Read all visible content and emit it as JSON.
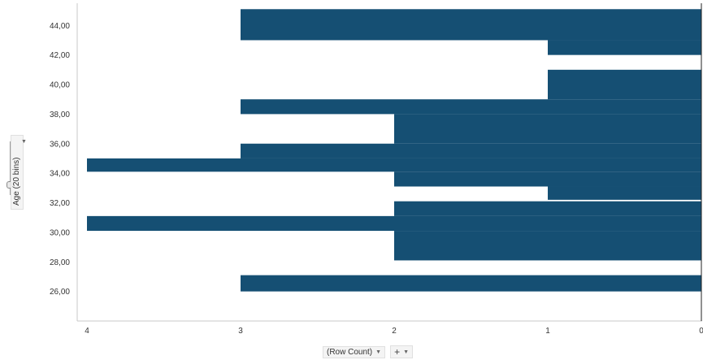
{
  "chart_data": {
    "type": "bar",
    "orientation": "horizontal",
    "x_reversed": true,
    "xlabel": "(Row Count)",
    "ylabel": "Age (20 bins)",
    "xlim": [
      0,
      4
    ],
    "ylim": [
      24,
      45.5
    ],
    "x_ticks": [
      "4",
      "3",
      "2",
      "1",
      "0"
    ],
    "y_ticks": [
      "26,00",
      "28,00",
      "30,00",
      "32,00",
      "34,00",
      "36,00",
      "38,00",
      "40,00",
      "42,00",
      "44,00"
    ],
    "bar_color": "#154f73",
    "grid": false,
    "bins": [
      {
        "from": 26.0,
        "to": 27.1,
        "value": 3
      },
      {
        "from": 28.1,
        "to": 30.1,
        "value": 2
      },
      {
        "from": 30.1,
        "to": 31.1,
        "value": 4
      },
      {
        "from": 31.1,
        "to": 32.1,
        "value": 2
      },
      {
        "from": 32.2,
        "to": 33.1,
        "value": 1
      },
      {
        "from": 33.1,
        "to": 34.1,
        "value": 2
      },
      {
        "from": 34.1,
        "to": 35.0,
        "value": 4
      },
      {
        "from": 35.0,
        "to": 36.0,
        "value": 3
      },
      {
        "from": 36.0,
        "to": 38.0,
        "value": 2
      },
      {
        "from": 38.0,
        "to": 39.0,
        "value": 3
      },
      {
        "from": 39.0,
        "to": 41.0,
        "value": 1
      },
      {
        "from": 42.0,
        "to": 43.0,
        "value": 1
      },
      {
        "from": 43.0,
        "to": 45.1,
        "value": 3
      }
    ]
  },
  "controls": {
    "x_axis_label": "(Row Count)",
    "y_axis_label": "Age (20 bins)",
    "add_symbol": "+",
    "dropdown_glyph": "▼"
  }
}
